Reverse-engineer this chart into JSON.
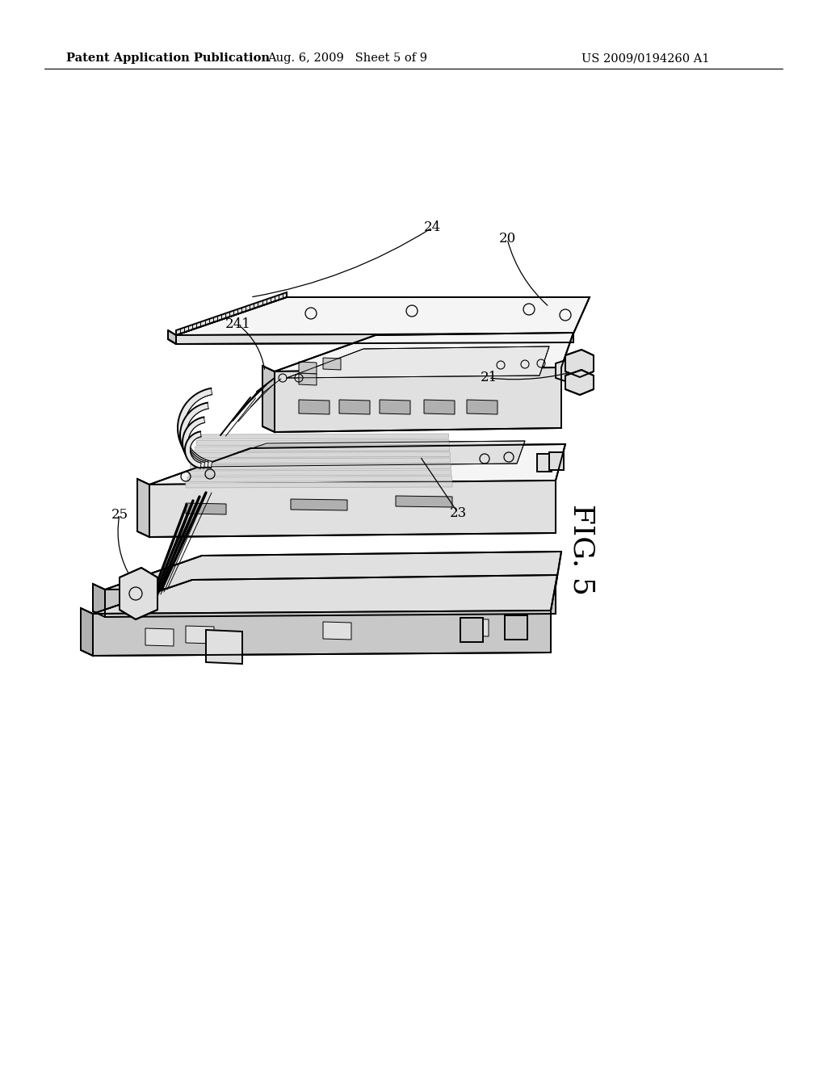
{
  "background_color": "#ffffff",
  "header_left": "Patent Application Publication",
  "header_middle": "Aug. 6, 2009   Sheet 5 of 9",
  "header_right": "US 2009/0194260 A1",
  "figure_label": "FIG. 5",
  "label_fontsize": 12,
  "header_fontsize": 10.5,
  "fig_label_fontsize": 26,
  "line_color": "#000000",
  "lw_main": 1.4,
  "lw_thin": 0.7,
  "face_light": "#f5f5f5",
  "face_mid": "#e0e0e0",
  "face_dark": "#c8c8c8",
  "face_darker": "#b0b0b0"
}
